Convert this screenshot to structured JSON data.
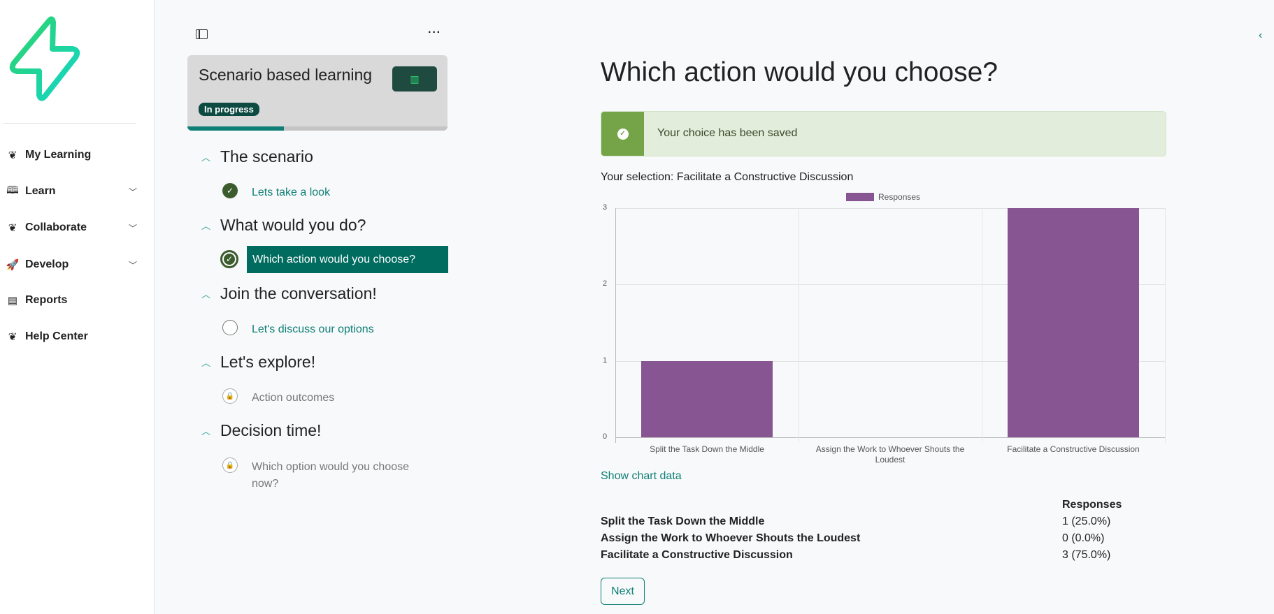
{
  "sidebar": {
    "items": [
      {
        "label": "My Learning",
        "icon": "leaf-icon",
        "chevron": false
      },
      {
        "label": "Learn",
        "icon": "book-icon",
        "chevron": true
      },
      {
        "label": "Collaborate",
        "icon": "leaf-icon",
        "chevron": true
      },
      {
        "label": "Develop",
        "icon": "rocket-icon",
        "chevron": true
      },
      {
        "label": "Reports",
        "icon": "report-icon",
        "chevron": false
      },
      {
        "label": "Help Center",
        "icon": "leaf-icon",
        "chevron": false
      }
    ]
  },
  "course": {
    "title": "Scenario based learning",
    "status": "In progress",
    "progress_percent": 37
  },
  "outline": [
    {
      "heading": "The scenario",
      "items": [
        {
          "label": "Lets take a look",
          "state": "done"
        }
      ]
    },
    {
      "heading": "What would you do?",
      "items": [
        {
          "label": "Which action would you choose?",
          "state": "active"
        }
      ]
    },
    {
      "heading": "Join the conversation!",
      "items": [
        {
          "label": "Let's discuss our options",
          "state": "open"
        }
      ]
    },
    {
      "heading": "Let's explore!",
      "items": [
        {
          "label": "Action outcomes",
          "state": "locked"
        }
      ]
    },
    {
      "heading": "Decision time!",
      "items": [
        {
          "label": "Which option would you choose now?",
          "state": "locked"
        }
      ]
    }
  ],
  "main": {
    "title": "Which action would you choose?",
    "alert": "Your choice has been saved",
    "selection": "Your selection: Facilitate a Constructive Discussion",
    "show_chart_data": "Show chart data",
    "table": {
      "header": "Responses",
      "rows": [
        {
          "label": "Split the Task Down the Middle",
          "value": "1 (25.0%)"
        },
        {
          "label": "Assign the Work to Whoever Shouts the Loudest",
          "value": "0 (0.0%)"
        },
        {
          "label": "Facilitate a Constructive Discussion",
          "value": "3 (75.0%)"
        }
      ]
    },
    "next": "Next"
  },
  "colors": {
    "accent": "#0f7f75",
    "active": "#006b5f",
    "bar": "#875692",
    "alert_bg": "#e2eddb",
    "alert_icon_bg": "#74a447"
  },
  "chart_data": {
    "type": "bar",
    "categories": [
      "Split the Task Down the Middle",
      "Assign the Work to Whoever Shouts the Loudest",
      "Facilitate a Constructive Discussion"
    ],
    "series": [
      {
        "name": "Responses",
        "values": [
          1,
          0,
          3
        ]
      }
    ],
    "yticks": [
      "0",
      "1",
      "2",
      "3"
    ],
    "ylim": [
      0,
      3
    ],
    "grid": true,
    "legend": "top"
  }
}
